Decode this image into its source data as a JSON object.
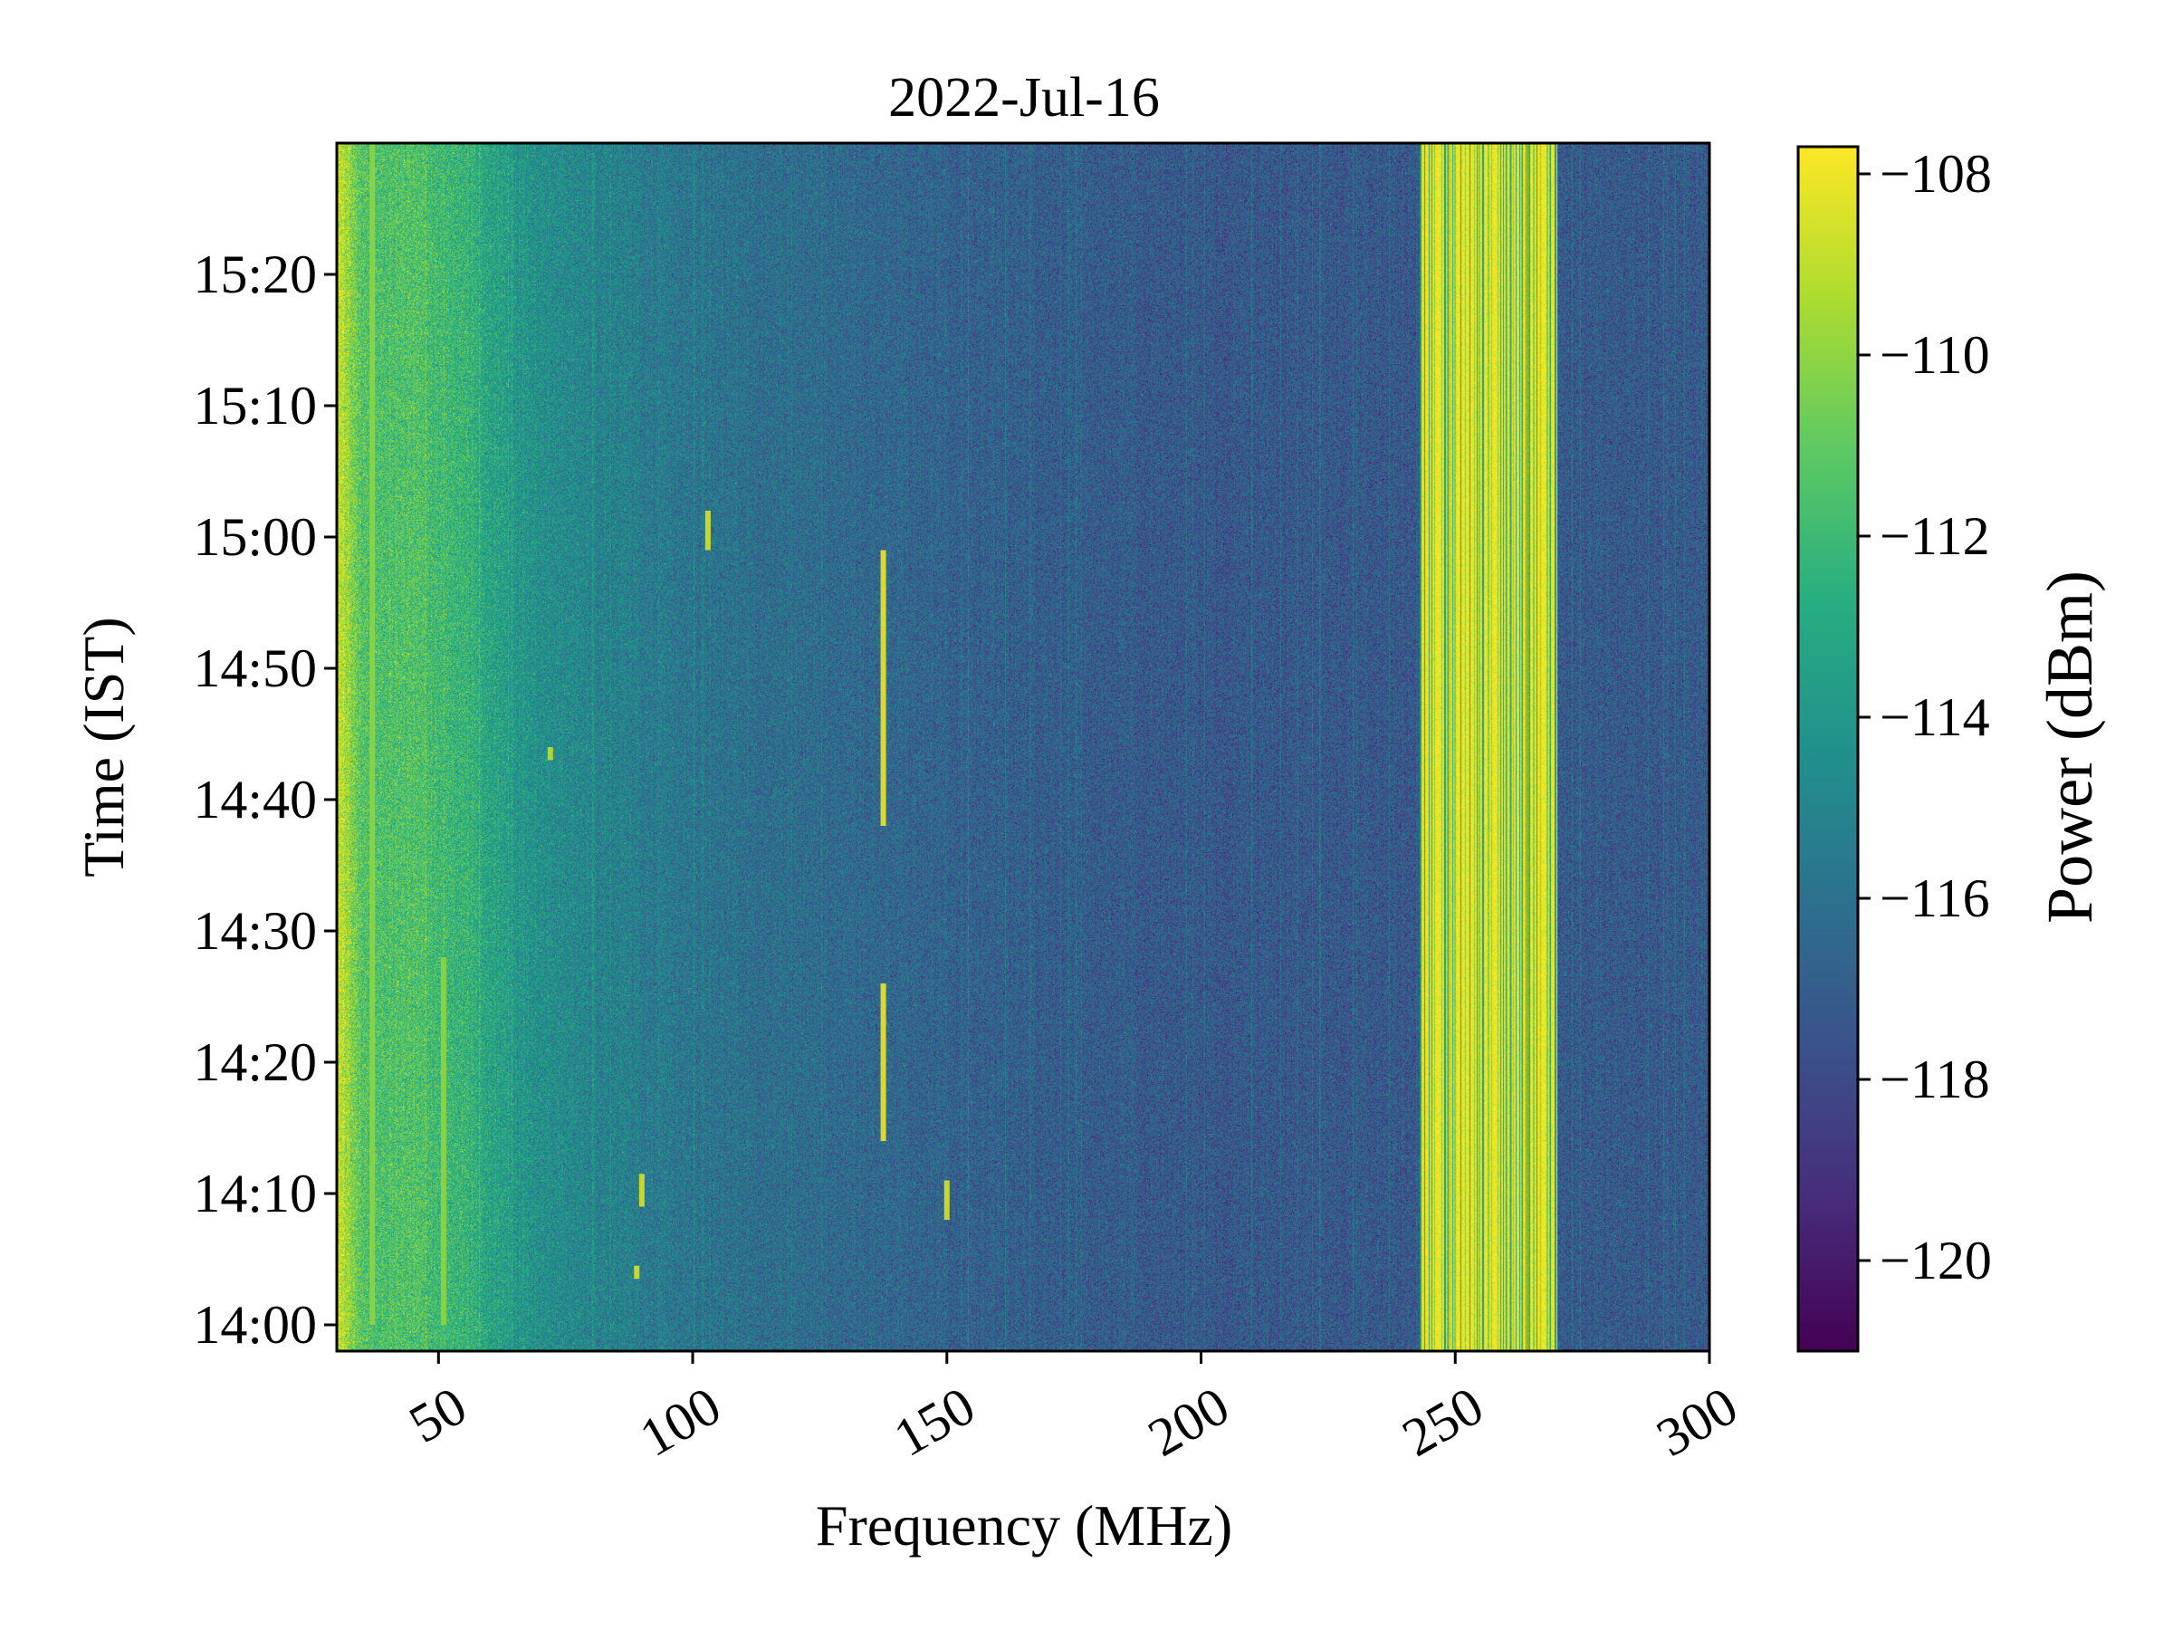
{
  "chart_data": {
    "type": "heatmap",
    "title": "2022-Jul-16",
    "xlabel": "Frequency (MHz)",
    "ylabel": "Time (IST)",
    "colorbar_label": "Power (dBm)",
    "colormap": "viridis",
    "xlim": [
      30,
      300
    ],
    "ylim_minutes_after_1400": [
      -2,
      90
    ],
    "xticks": [
      {
        "value": 50,
        "label": "50"
      },
      {
        "value": 100,
        "label": "100"
      },
      {
        "value": 150,
        "label": "150"
      },
      {
        "value": 200,
        "label": "200"
      },
      {
        "value": 250,
        "label": "250"
      },
      {
        "value": 300,
        "label": "300"
      }
    ],
    "yticks": [
      {
        "value": 0,
        "label": "14:00"
      },
      {
        "value": 10,
        "label": "14:10"
      },
      {
        "value": 20,
        "label": "14:20"
      },
      {
        "value": 30,
        "label": "14:30"
      },
      {
        "value": 40,
        "label": "14:40"
      },
      {
        "value": 50,
        "label": "14:50"
      },
      {
        "value": 60,
        "label": "15:00"
      },
      {
        "value": 70,
        "label": "15:10"
      },
      {
        "value": 80,
        "label": "15:20"
      }
    ],
    "colorbar_range": [
      -121,
      -107.7
    ],
    "colorbar_ticks": [
      {
        "value": -108,
        "label": "−108"
      },
      {
        "value": -110,
        "label": "−110"
      },
      {
        "value": -112,
        "label": "−112"
      },
      {
        "value": -114,
        "label": "−114"
      },
      {
        "value": -116,
        "label": "−116"
      },
      {
        "value": -118,
        "label": "−118"
      },
      {
        "value": -120,
        "label": "−120"
      }
    ],
    "background_profile_dbm": [
      {
        "freq": 30,
        "power": -108.5
      },
      {
        "freq": 35,
        "power": -111.5
      },
      {
        "freq": 45,
        "power": -111.5
      },
      {
        "freq": 55,
        "power": -112.3
      },
      {
        "freq": 65,
        "power": -114.0
      },
      {
        "freq": 80,
        "power": -115.0
      },
      {
        "freq": 100,
        "power": -115.8
      },
      {
        "freq": 125,
        "power": -116.3
      },
      {
        "freq": 150,
        "power": -116.8
      },
      {
        "freq": 200,
        "power": -117.3
      },
      {
        "freq": 243,
        "power": -117.3
      },
      {
        "freq": 270,
        "power": -117.2
      },
      {
        "freq": 300,
        "power": -117.2
      }
    ],
    "interference_band": {
      "freq_start": 243,
      "freq_end": 270,
      "power": -108
    },
    "features": [
      {
        "freq": 137.5,
        "t_start": 38,
        "t_end": 59,
        "power": -108
      },
      {
        "freq": 137.5,
        "t_start": 14,
        "t_end": 26,
        "power": -108
      },
      {
        "freq": 150,
        "t_start": 8,
        "t_end": 11,
        "power": -108.5
      },
      {
        "freq": 103,
        "t_start": 59,
        "t_end": 62,
        "power": -108.5
      },
      {
        "freq": 90,
        "t_start": 9,
        "t_end": 11.5,
        "power": -108.5
      },
      {
        "freq": 89,
        "t_start": 3.5,
        "t_end": 4.5,
        "power": -108.5
      },
      {
        "freq": 72,
        "t_start": 43,
        "t_end": 44,
        "power": -109
      },
      {
        "freq": 51,
        "t_start": 0,
        "t_end": 28,
        "power": -110
      },
      {
        "freq": 37,
        "t_start": 0,
        "t_end": 90,
        "power": -110
      }
    ]
  }
}
